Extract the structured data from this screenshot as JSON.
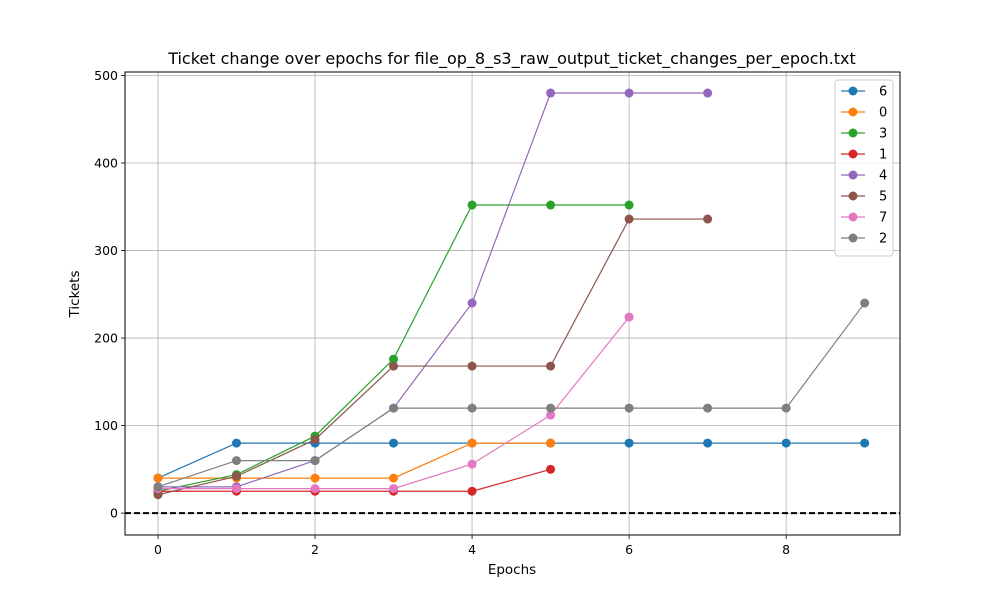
{
  "chart_data": {
    "type": "line",
    "title": "Ticket change over epochs for file_op_8_s3_raw_output_ticket_changes_per_epoch.txt",
    "xlabel": "Epochs",
    "ylabel": "Tickets",
    "xlim": [
      -0.42,
      9.45
    ],
    "ylim": [
      -25,
      504
    ],
    "xticks": [
      0,
      2,
      4,
      6,
      8
    ],
    "yticks": [
      0,
      100,
      200,
      300,
      400,
      500
    ],
    "grid": true,
    "legend_position": "top-right",
    "reference_line": {
      "y": 0,
      "style": "dashed",
      "color": "#000000"
    },
    "series": [
      {
        "name": "6",
        "color": "#1f77b4",
        "x": [
          0,
          1,
          2,
          3,
          4,
          5,
          6,
          7,
          8,
          9
        ],
        "y": [
          40,
          80,
          80,
          80,
          80,
          80,
          80,
          80,
          80,
          80
        ]
      },
      {
        "name": "0",
        "color": "#ff7f0e",
        "x": [
          0,
          1,
          2,
          3,
          4,
          5
        ],
        "y": [
          40,
          40,
          40,
          40,
          80,
          80
        ]
      },
      {
        "name": "3",
        "color": "#2ca02c",
        "x": [
          0,
          1,
          2,
          3,
          4,
          5,
          6
        ],
        "y": [
          25,
          44,
          88,
          176,
          352,
          352,
          352
        ]
      },
      {
        "name": "1",
        "color": "#d62728",
        "x": [
          0,
          1,
          2,
          3,
          4,
          5
        ],
        "y": [
          25,
          25,
          25,
          25,
          25,
          50
        ]
      },
      {
        "name": "4",
        "color": "#9467bd",
        "x": [
          0,
          1,
          2,
          3,
          4,
          5,
          6,
          7
        ],
        "y": [
          30,
          30,
          60,
          120,
          240,
          480,
          480,
          480
        ]
      },
      {
        "name": "5",
        "color": "#8c564b",
        "x": [
          0,
          1,
          2,
          3,
          4,
          5,
          6,
          7
        ],
        "y": [
          21,
          42,
          84,
          168,
          168,
          168,
          336,
          336
        ]
      },
      {
        "name": "7",
        "color": "#e377c2",
        "x": [
          0,
          1,
          2,
          3,
          4,
          5,
          6
        ],
        "y": [
          28,
          28,
          28,
          28,
          56,
          112,
          224
        ]
      },
      {
        "name": "2",
        "color": "#7f7f7f",
        "x": [
          0,
          1,
          2,
          3,
          4,
          5,
          6,
          7,
          8,
          9
        ],
        "y": [
          30,
          60,
          60,
          120,
          120,
          120,
          120,
          120,
          120,
          240
        ]
      }
    ]
  }
}
